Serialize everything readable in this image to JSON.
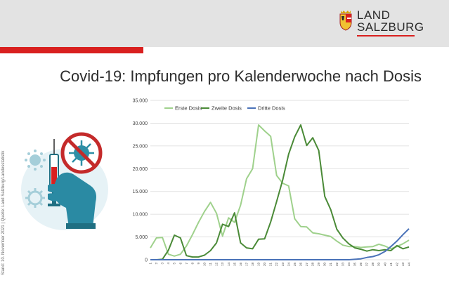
{
  "logo": {
    "line1": "LAND",
    "line2": "SALZBURG"
  },
  "title": "Covid-19: Impfungen pro Kalenderwoche nach Dosis",
  "sidenote": "Stand: 10. November 2021 | Quelle: Land Salzburg/Landesstatistik",
  "colors": {
    "brand_red": "#d9201f",
    "header_gray": "#e3e3e3"
  },
  "chart_data": {
    "type": "line",
    "title": "",
    "xlabel": "",
    "ylabel": "",
    "x": [
      1,
      2,
      3,
      4,
      5,
      6,
      7,
      8,
      9,
      10,
      11,
      12,
      13,
      14,
      15,
      16,
      17,
      18,
      19,
      20,
      21,
      22,
      23,
      24,
      25,
      26,
      27,
      28,
      29,
      30,
      31,
      32,
      33,
      34,
      35,
      36,
      37,
      38,
      39,
      40,
      41,
      42,
      43,
      44
    ],
    "ylim": [
      0,
      35000
    ],
    "yticks": [
      "0",
      "5.000",
      "10.000",
      "15.000",
      "20.000",
      "25.000",
      "30.000",
      "35.000"
    ],
    "ytick_values": [
      0,
      5000,
      10000,
      15000,
      20000,
      25000,
      30000,
      35000
    ],
    "grid": true,
    "legend": "top-left",
    "series": [
      {
        "name": "Erste Dosis",
        "color": "#9fd18c",
        "values": [
          2600,
          4800,
          4900,
          1200,
          800,
          1200,
          3000,
          5500,
          8200,
          10600,
          12600,
          10200,
          5200,
          9200,
          8200,
          12000,
          17800,
          20000,
          29600,
          28300,
          27100,
          18500,
          16800,
          16200,
          9000,
          7300,
          7200,
          5900,
          5700,
          5400,
          5100,
          4100,
          3200,
          2900,
          2900,
          2700,
          2800,
          2900,
          3400,
          3000,
          2400,
          2900,
          3500,
          4300
        ]
      },
      {
        "name": "Zweite Dosis",
        "color": "#4a8a37",
        "values": [
          0,
          0,
          100,
          2100,
          5400,
          4800,
          900,
          600,
          600,
          1000,
          2000,
          3700,
          7800,
          7300,
          10300,
          3700,
          2600,
          2400,
          4500,
          4600,
          8300,
          12800,
          17500,
          23200,
          27000,
          29600,
          25100,
          26800,
          24000,
          13900,
          11000,
          6700,
          4800,
          3500,
          2600,
          2300,
          1900,
          2200,
          2000,
          2200,
          2000,
          3100,
          2400,
          2800
        ]
      },
      {
        "name": "Dritte Dosis",
        "color": "#4a72b8",
        "values": [
          0,
          0,
          0,
          0,
          0,
          0,
          0,
          0,
          0,
          0,
          0,
          0,
          0,
          0,
          0,
          0,
          0,
          0,
          0,
          0,
          0,
          0,
          0,
          0,
          0,
          0,
          0,
          0,
          0,
          0,
          0,
          0,
          0,
          0,
          100,
          200,
          500,
          700,
          1100,
          1800,
          2900,
          4100,
          5500,
          6800
        ]
      }
    ]
  }
}
